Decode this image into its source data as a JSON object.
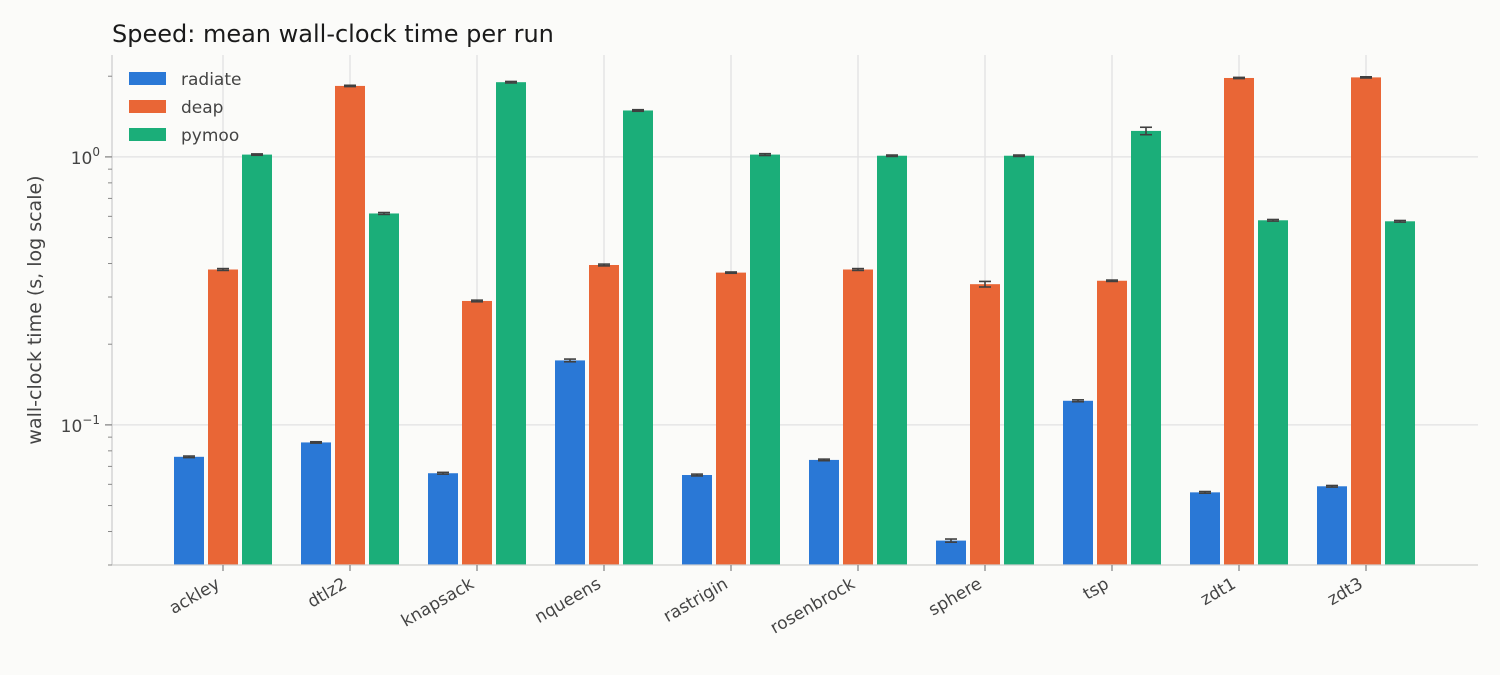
{
  "chart_data": {
    "type": "bar",
    "title": "Speed: mean wall-clock time per run",
    "xlabel": "",
    "ylabel": "wall-clock time (s, log scale)",
    "yscale": "log",
    "ylim": [
      0.03,
      2.4
    ],
    "yticks": [
      {
        "value": 1.0,
        "base": "10",
        "exponent": "0"
      },
      {
        "value": 0.1,
        "base": "10",
        "exponent": "−1"
      }
    ],
    "grid": true,
    "legend_position": "top-left",
    "categories": [
      "ackley",
      "dtlz2",
      "knapsack",
      "nqueens",
      "rastrigin",
      "rosenbrock",
      "sphere",
      "tsp",
      "zdt1",
      "zdt3"
    ],
    "series": [
      {
        "name": "radiate",
        "color": "#2a78d6",
        "values": [
          0.076,
          0.086,
          0.066,
          0.174,
          0.065,
          0.074,
          0.037,
          0.123,
          0.056,
          0.059
        ],
        "errors": [
          0.0005,
          0.0005,
          0.0005,
          0.002,
          0.0005,
          0.0005,
          0.0005,
          0.001,
          0.0004,
          0.0004
        ]
      },
      {
        "name": "deap",
        "color": "#e96636",
        "values": [
          0.38,
          1.84,
          0.29,
          0.395,
          0.37,
          0.38,
          0.335,
          0.345,
          1.97,
          1.98
        ],
        "errors": [
          0.003,
          0.01,
          0.002,
          0.003,
          0.002,
          0.003,
          0.008,
          0.002,
          0.01,
          0.01
        ]
      },
      {
        "name": "pymoo",
        "color": "#1bae79",
        "values": [
          1.02,
          0.615,
          1.9,
          1.49,
          1.02,
          1.01,
          1.01,
          1.25,
          0.58,
          0.575
        ],
        "errors": [
          0.006,
          0.005,
          0.012,
          0.01,
          0.008,
          0.006,
          0.006,
          0.04,
          0.004,
          0.004
        ]
      }
    ]
  }
}
